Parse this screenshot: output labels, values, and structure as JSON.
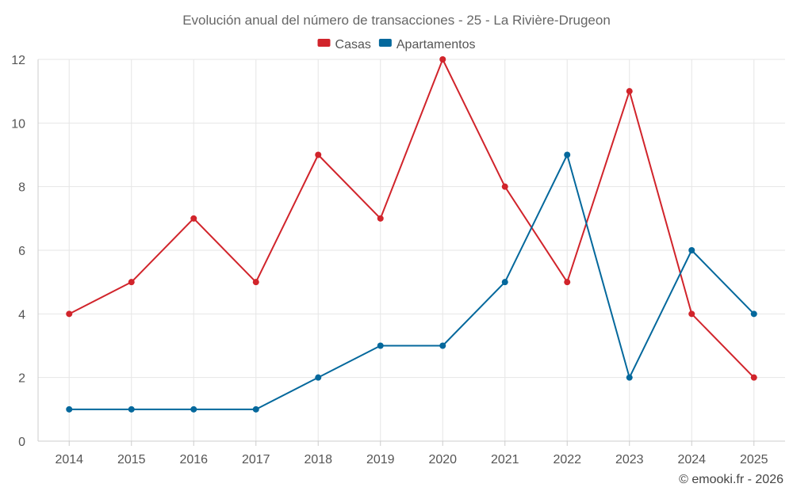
{
  "chart_data": {
    "type": "line",
    "title": "Evolución anual del número de transacciones - 25 - La Rivière-Drugeon",
    "categories": [
      "2014",
      "2015",
      "2016",
      "2017",
      "2018",
      "2019",
      "2020",
      "2021",
      "2022",
      "2023",
      "2024",
      "2025"
    ],
    "series": [
      {
        "name": "Casas",
        "color": "#d1242b",
        "values": [
          4,
          5,
          7,
          5,
          9,
          7,
          12,
          8,
          5,
          11,
          4,
          2
        ]
      },
      {
        "name": "Apartamentos",
        "color": "#04689c",
        "values": [
          1,
          1,
          1,
          1,
          2,
          3,
          3,
          5,
          9,
          2,
          6,
          4
        ]
      }
    ],
    "ylim": [
      0,
      12
    ],
    "yticks": [
      0,
      2,
      4,
      6,
      8,
      10,
      12
    ],
    "xlabel": "",
    "ylabel": "",
    "grid": true,
    "legend_position": "top-center"
  },
  "credit": "© emooki.fr - 2026"
}
